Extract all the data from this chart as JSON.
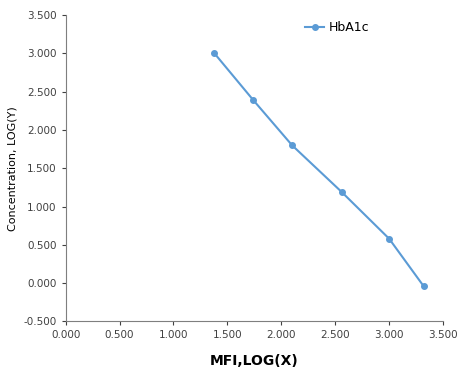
{
  "x": [
    1.38,
    1.74,
    2.1,
    2.56,
    3.0,
    3.32
  ],
  "y": [
    3.0,
    2.39,
    1.8,
    1.19,
    0.58,
    -0.04
  ],
  "line_color": "#5B9BD5",
  "marker_color": "#5B9BD5",
  "marker_style": "o",
  "marker_size": 4,
  "line_width": 1.5,
  "legend_label": "HbA1c",
  "xlabel": "MFI,LOG(X)",
  "ylabel": "Concentration, LOG(Y)",
  "xlim": [
    0.0,
    3.5
  ],
  "ylim": [
    -0.5,
    3.5
  ],
  "xticks": [
    0.0,
    0.5,
    1.0,
    1.5,
    2.0,
    2.5,
    3.0,
    3.5
  ],
  "yticks": [
    -0.5,
    0.0,
    0.5,
    1.0,
    1.5,
    2.0,
    2.5,
    3.0,
    3.5
  ],
  "xlabel_fontsize": 10,
  "ylabel_fontsize": 8,
  "tick_fontsize": 7.5,
  "legend_fontsize": 9,
  "background_color": "#ffffff",
  "spine_color": "#7f7f7f",
  "tick_color": "#404040"
}
